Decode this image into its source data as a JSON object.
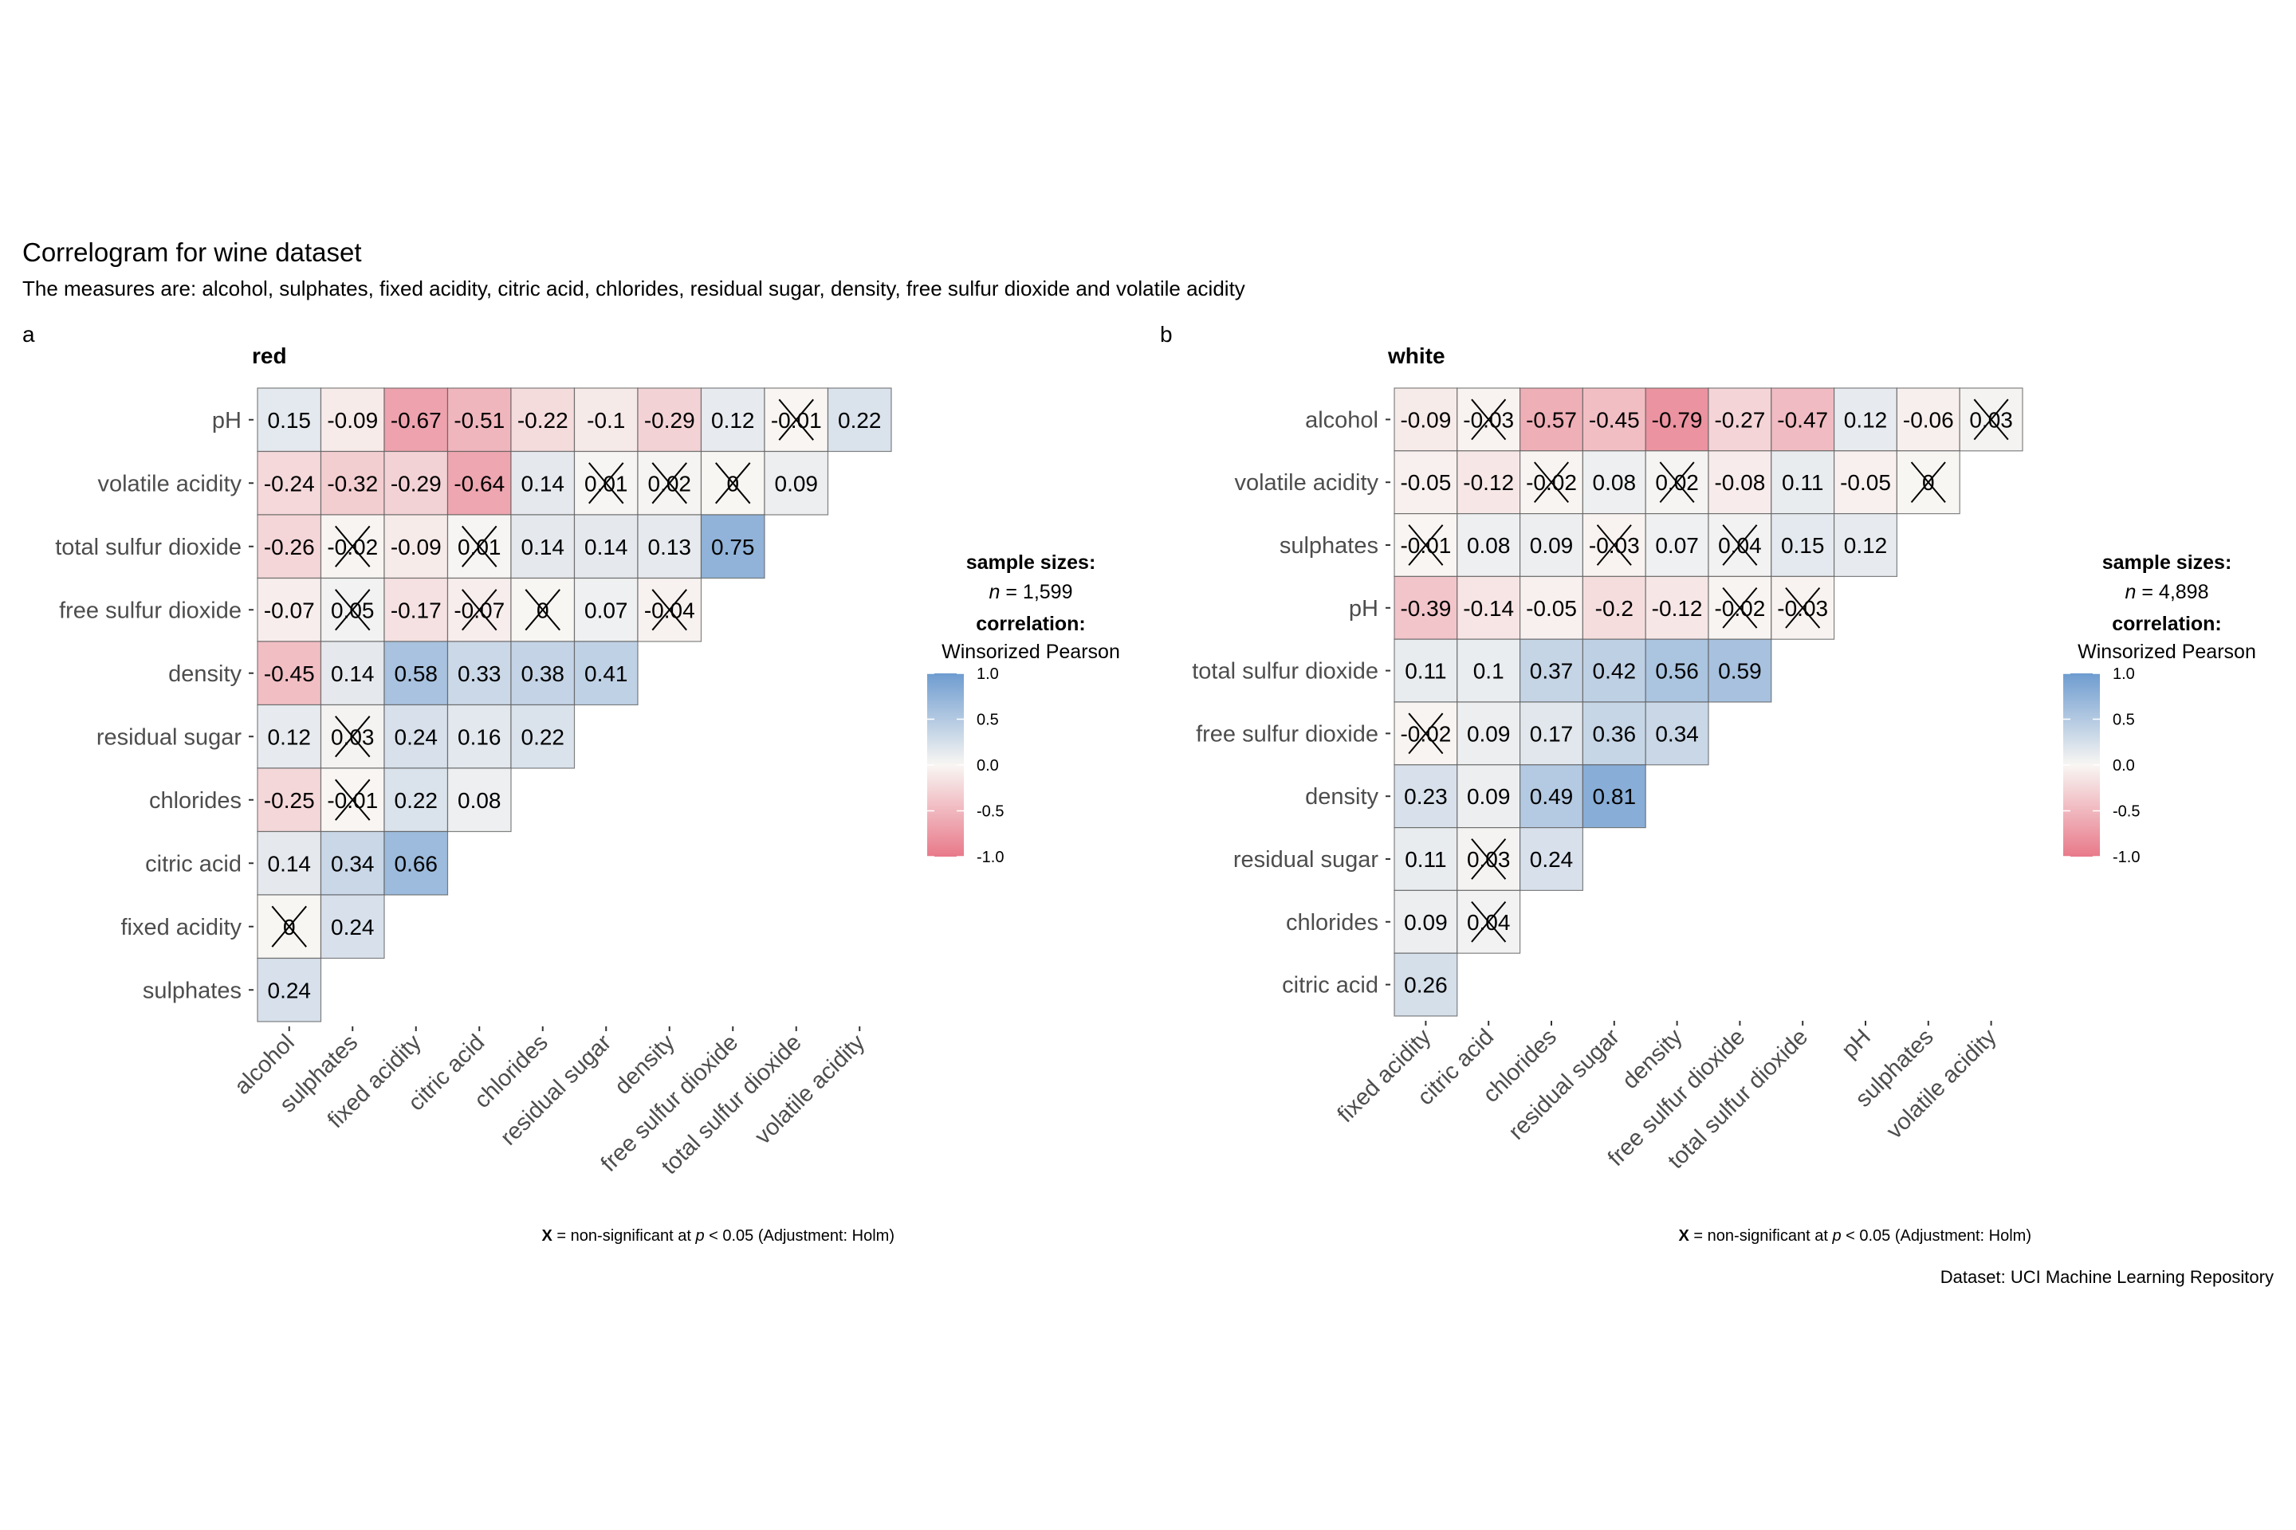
{
  "title": "Correlogram for wine dataset",
  "subtitle": "The measures are: alcohol, sulphates, fixed acidity, citric acid, chlorides, residual sugar, density, free sulfur dioxide and volatile acidity",
  "dataset_caption": "Dataset: UCI Machine Learning Repository",
  "colors": {
    "low": "#E8798A",
    "mid": "#F8F6F3",
    "high": "#6E9CD0",
    "cell_border": "#5A5A5A",
    "axis_text": "#4D4D4D"
  },
  "chart_data": [
    {
      "type": "heatmap",
      "tag": "a",
      "title": "red",
      "x_labels": [
        "alcohol",
        "sulphates",
        "fixed acidity",
        "citric acid",
        "chlorides",
        "residual sugar",
        "density",
        "free sulfur dioxide",
        "total sulfur dioxide",
        "volatile acidity"
      ],
      "y_labels": [
        "pH",
        "volatile acidity",
        "total sulfur dioxide",
        "free sulfur dioxide",
        "density",
        "residual sugar",
        "chlorides",
        "citric acid",
        "fixed acidity",
        "sulphates"
      ],
      "values": [
        [
          0.15,
          -0.09,
          -0.67,
          -0.51,
          -0.22,
          -0.1,
          -0.29,
          0.12,
          -0.01,
          0.22
        ],
        [
          -0.24,
          -0.32,
          -0.29,
          -0.64,
          0.14,
          0.01,
          0.02,
          0,
          0.09
        ],
        [
          -0.26,
          -0.02,
          -0.09,
          0.01,
          0.14,
          0.14,
          0.13,
          0.75
        ],
        [
          -0.07,
          0.05,
          -0.17,
          -0.07,
          0,
          0.07,
          -0.04
        ],
        [
          -0.45,
          0.14,
          0.58,
          0.33,
          0.38,
          0.41
        ],
        [
          0.12,
          0.03,
          0.24,
          0.16,
          0.22
        ],
        [
          -0.25,
          -0.01,
          0.22,
          0.08
        ],
        [
          0.14,
          0.34,
          0.66
        ],
        [
          0,
          0.24
        ],
        [
          0.24
        ]
      ],
      "non_significant": [
        [
          false,
          false,
          false,
          false,
          false,
          false,
          false,
          false,
          true,
          false
        ],
        [
          false,
          false,
          false,
          false,
          false,
          true,
          true,
          true,
          false
        ],
        [
          false,
          true,
          false,
          true,
          false,
          false,
          false,
          false
        ],
        [
          false,
          true,
          false,
          true,
          true,
          false,
          true
        ],
        [
          false,
          false,
          false,
          false,
          false,
          false
        ],
        [
          false,
          true,
          false,
          false,
          false
        ],
        [
          false,
          true,
          false,
          false
        ],
        [
          false,
          false,
          false
        ],
        [
          true,
          false
        ],
        [
          false
        ]
      ],
      "legend": {
        "sample_title": "sample sizes:",
        "n_label": "n",
        "n_value": "= 1,599",
        "corr_title": "correlation:",
        "corr_method": "Winsorized Pearson",
        "ticks": [
          "1.0",
          "0.5",
          "0.0",
          "-0.5",
          "-1.0"
        ],
        "range": [
          -1,
          1
        ]
      },
      "caption": {
        "x": "X",
        "text": " = non-significant at ",
        "p": "p",
        "rest": " < 0.05 (Adjustment: Holm)"
      }
    },
    {
      "type": "heatmap",
      "tag": "b",
      "title": "white",
      "x_labels": [
        "fixed acidity",
        "citric acid",
        "chlorides",
        "residual sugar",
        "density",
        "free sulfur dioxide",
        "total sulfur dioxide",
        "pH",
        "sulphates",
        "volatile acidity"
      ],
      "y_labels": [
        "alcohol",
        "volatile acidity",
        "sulphates",
        "pH",
        "total sulfur dioxide",
        "free sulfur dioxide",
        "density",
        "residual sugar",
        "chlorides",
        "citric acid"
      ],
      "values": [
        [
          -0.09,
          -0.03,
          -0.57,
          -0.45,
          -0.79,
          -0.27,
          -0.47,
          0.12,
          -0.06,
          0.03
        ],
        [
          -0.05,
          -0.12,
          -0.02,
          0.08,
          0.02,
          -0.08,
          0.11,
          -0.05,
          0
        ],
        [
          -0.01,
          0.08,
          0.09,
          -0.03,
          0.07,
          0.04,
          0.15,
          0.12
        ],
        [
          -0.39,
          -0.14,
          -0.05,
          -0.2,
          -0.12,
          -0.02,
          -0.03
        ],
        [
          0.11,
          0.1,
          0.37,
          0.42,
          0.56,
          0.59
        ],
        [
          -0.02,
          0.09,
          0.17,
          0.36,
          0.34
        ],
        [
          0.23,
          0.09,
          0.49,
          0.81
        ],
        [
          0.11,
          0.03,
          0.24
        ],
        [
          0.09,
          0.04
        ],
        [
          0.26
        ]
      ],
      "non_significant": [
        [
          false,
          true,
          false,
          false,
          false,
          false,
          false,
          false,
          false,
          true
        ],
        [
          false,
          false,
          true,
          false,
          true,
          false,
          false,
          false,
          true
        ],
        [
          true,
          false,
          false,
          true,
          false,
          true,
          false,
          false
        ],
        [
          false,
          false,
          false,
          false,
          false,
          true,
          true
        ],
        [
          false,
          false,
          false,
          false,
          false,
          false
        ],
        [
          true,
          false,
          false,
          false,
          false
        ],
        [
          false,
          false,
          false,
          false
        ],
        [
          false,
          true,
          false
        ],
        [
          false,
          true
        ],
        [
          false
        ]
      ],
      "legend": {
        "sample_title": "sample sizes:",
        "n_label": "n",
        "n_value": "= 4,898",
        "corr_title": "correlation:",
        "corr_method": "Winsorized Pearson",
        "ticks": [
          "1.0",
          "0.5",
          "0.0",
          "-0.5",
          "-1.0"
        ],
        "range": [
          -1,
          1
        ]
      },
      "caption": {
        "x": "X",
        "text": " = non-significant at ",
        "p": "p",
        "rest": " < 0.05 (Adjustment: Holm)"
      }
    }
  ]
}
